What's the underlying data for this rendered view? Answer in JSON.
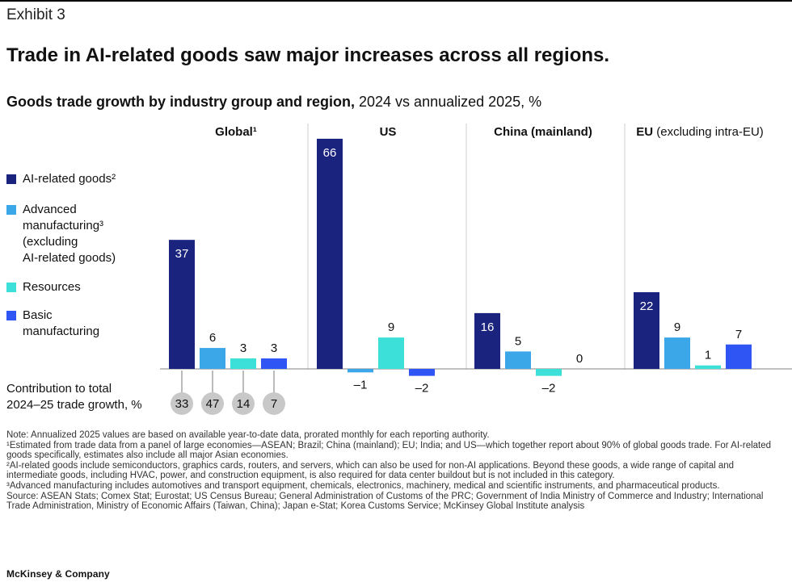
{
  "exhibit_label": "Exhibit 3",
  "headline": "Trade in AI-related goods saw major increases across all regions.",
  "subtitle_bold": "Goods trade growth by industry group and region,",
  "subtitle_rest": " 2024 vs annualized 2025, %",
  "legend": [
    {
      "label": "AI-related goods²",
      "color": "#1a237e"
    },
    {
      "label": "Advanced\nmanufacturing³\n(excluding\nAI-related goods)",
      "color": "#3ba7e8"
    },
    {
      "label": "Resources",
      "color": "#3de0d8"
    },
    {
      "label": "Basic\nmanufacturing",
      "color": "#2f55f5"
    }
  ],
  "contribution_label": "Contribution to total\n2024–25 trade growth, %",
  "chart_data": {
    "type": "bar",
    "categories": [
      "AI-related goods",
      "Advanced manufacturing (excluding AI-related goods)",
      "Resources",
      "Basic manufacturing"
    ],
    "panels": [
      {
        "title_bold": "Global¹",
        "title_rest": "",
        "values": [
          37,
          6,
          3,
          3
        ],
        "labels": [
          "37",
          "6",
          "3",
          "3"
        ],
        "contributions": [
          "33",
          "47",
          "14",
          "7"
        ]
      },
      {
        "title_bold": "US",
        "title_rest": "",
        "values": [
          66,
          -1,
          9,
          -2
        ],
        "labels": [
          "66",
          "–1",
          "9",
          "–2"
        ]
      },
      {
        "title_bold": "China (mainland)",
        "title_rest": "",
        "values": [
          16,
          5,
          -2,
          0
        ],
        "labels": [
          "16",
          "5",
          "–2",
          "0"
        ]
      },
      {
        "title_bold": "EU",
        "title_rest": " (excluding intra-EU)",
        "values": [
          22,
          9,
          1,
          7
        ],
        "labels": [
          "22",
          "9",
          "1",
          "7"
        ]
      }
    ],
    "ylabel": "%",
    "ylim": [
      -2,
      66
    ]
  },
  "notes": [
    "Note: Annualized 2025 values are based on available year-to-date data, prorated monthly for each reporting authority.",
    "¹Estimated from trade data from a panel of large economies—ASEAN; Brazil; China (mainland); EU; India; and US—which together report about 90% of global goods trade. For AI-related goods specifically, estimates also include all major Asian economies.",
    "²AI-related goods include semiconductors, graphics cards, routers, and servers, which can also be used for non-AI applications. Beyond these goods, a wide range of capital and intermediate goods, including HVAC, power, and construction equipment, is also required for data center buildout but is not included in this category.",
    "³Advanced manufacturing includes automotives and transport equipment, chemicals, electronics, machinery, medical and scientific instruments, and pharmaceutical products.",
    "Source: ASEAN Stats; Comex Stat; Eurostat; US Census Bureau; General Administration of Customs of the PRC; Government of India Ministry of Commerce and Industry; International Trade Administration, Ministry of Economic Affairs (Taiwan, China); Japan e-Stat; Korea Customs Service; McKinsey Global Institute analysis"
  ],
  "logo": "McKinsey & Company"
}
